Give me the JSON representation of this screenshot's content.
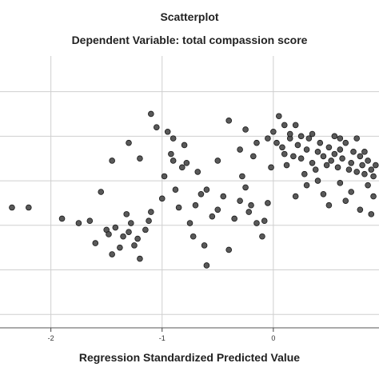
{
  "chart_data": {
    "type": "scatter",
    "title": "Scatterplot",
    "subtitle": "Dependent Variable: total compassion score",
    "xlabel": "Regression Standardized Predicted Value",
    "ylabel": "",
    "xlim": [
      -2.4,
      0.95
    ],
    "ylim": [
      -3.3,
      2.8
    ],
    "xticks": [
      -2,
      -1,
      0
    ],
    "xtick_labels": [
      "-2",
      "-1",
      "0"
    ],
    "yticks": [
      -3,
      -2,
      -1,
      0,
      1,
      2
    ],
    "grid": "horizontal and vertical gridlines",
    "marker_color": "#595959",
    "marker_edge": "#1a1a1a",
    "points": [
      [
        -2.35,
        -0.6
      ],
      [
        -2.2,
        -0.6
      ],
      [
        -1.9,
        -0.85
      ],
      [
        -1.75,
        -0.95
      ],
      [
        -1.65,
        -0.9
      ],
      [
        -1.6,
        -1.4
      ],
      [
        -1.55,
        -0.25
      ],
      [
        -1.5,
        -1.1
      ],
      [
        -1.48,
        -1.2
      ],
      [
        -1.45,
        -1.65
      ],
      [
        -1.42,
        -1.05
      ],
      [
        -1.38,
        -1.5
      ],
      [
        -1.35,
        -1.25
      ],
      [
        -1.32,
        -0.75
      ],
      [
        -1.3,
        -1.15
      ],
      [
        -1.28,
        -0.95
      ],
      [
        -1.25,
        -1.45
      ],
      [
        -1.22,
        -1.3
      ],
      [
        -1.15,
        -1.1
      ],
      [
        -1.12,
        -0.9
      ],
      [
        -1.1,
        -0.7
      ],
      [
        -1.2,
        -1.75
      ],
      [
        -1.05,
        1.2
      ],
      [
        -1.0,
        -0.4
      ],
      [
        -0.98,
        0.1
      ],
      [
        -0.95,
        1.1
      ],
      [
        -0.92,
        0.6
      ],
      [
        -0.9,
        0.45
      ],
      [
        -0.88,
        -0.2
      ],
      [
        -0.85,
        -0.6
      ],
      [
        -0.82,
        0.3
      ],
      [
        -0.8,
        0.8
      ],
      [
        -0.78,
        0.4
      ],
      [
        -0.75,
        -0.95
      ],
      [
        -0.72,
        -1.25
      ],
      [
        -0.7,
        -0.55
      ],
      [
        -0.68,
        0.2
      ],
      [
        -0.65,
        -0.3
      ],
      [
        -0.62,
        -1.45
      ],
      [
        -0.6,
        -1.9
      ],
      [
        -0.55,
        -0.8
      ],
      [
        -0.5,
        -0.65
      ],
      [
        -0.45,
        -0.35
      ],
      [
        -0.4,
        -1.55
      ],
      [
        -0.35,
        -0.85
      ],
      [
        -0.3,
        -0.45
      ],
      [
        -0.28,
        0.1
      ],
      [
        -0.25,
        -0.15
      ],
      [
        -0.22,
        -0.7
      ],
      [
        -0.2,
        -0.55
      ],
      [
        -0.18,
        0.55
      ],
      [
        -0.15,
        -0.95
      ],
      [
        -0.1,
        -1.25
      ],
      [
        -0.08,
        -0.9
      ],
      [
        -0.05,
        -0.5
      ],
      [
        -0.02,
        0.3
      ],
      [
        0.0,
        1.1
      ],
      [
        0.03,
        0.85
      ],
      [
        0.05,
        1.45
      ],
      [
        0.08,
        0.75
      ],
      [
        0.1,
        0.6
      ],
      [
        0.12,
        0.35
      ],
      [
        0.15,
        0.95
      ],
      [
        0.18,
        0.55
      ],
      [
        0.2,
        1.25
      ],
      [
        0.22,
        0.8
      ],
      [
        0.25,
        0.5
      ],
      [
        0.28,
        0.15
      ],
      [
        0.3,
        0.7
      ],
      [
        0.32,
        0.95
      ],
      [
        0.35,
        0.4
      ],
      [
        0.38,
        0.25
      ],
      [
        0.4,
        0.65
      ],
      [
        0.42,
        0.85
      ],
      [
        0.45,
        0.55
      ],
      [
        0.48,
        0.35
      ],
      [
        0.5,
        0.75
      ],
      [
        0.52,
        0.45
      ],
      [
        0.55,
        0.6
      ],
      [
        0.58,
        0.3
      ],
      [
        0.6,
        0.7
      ],
      [
        0.62,
        0.5
      ],
      [
        0.65,
        0.85
      ],
      [
        0.68,
        0.25
      ],
      [
        0.7,
        0.4
      ],
      [
        0.72,
        0.65
      ],
      [
        0.75,
        0.2
      ],
      [
        0.78,
        0.55
      ],
      [
        0.8,
        0.35
      ],
      [
        0.82,
        0.15
      ],
      [
        0.85,
        0.45
      ],
      [
        0.88,
        0.25
      ],
      [
        0.9,
        0.1
      ],
      [
        0.92,
        0.35
      ],
      [
        -1.45,
        0.45
      ],
      [
        -1.3,
        0.85
      ],
      [
        -1.2,
        0.5
      ],
      [
        -1.1,
        1.5
      ],
      [
        -0.9,
        0.95
      ],
      [
        -0.4,
        1.35
      ],
      [
        -0.25,
        1.15
      ],
      [
        -0.05,
        0.95
      ],
      [
        0.1,
        1.25
      ],
      [
        0.35,
        1.05
      ],
      [
        0.55,
        1.0
      ],
      [
        0.75,
        0.95
      ],
      [
        0.3,
        -0.1
      ],
      [
        0.45,
        -0.3
      ],
      [
        0.6,
        -0.05
      ],
      [
        0.7,
        -0.25
      ],
      [
        0.85,
        -0.1
      ],
      [
        0.9,
        -0.35
      ],
      [
        0.5,
        -0.55
      ],
      [
        0.65,
        -0.45
      ],
      [
        0.78,
        -0.65
      ],
      [
        0.88,
        -0.75
      ],
      [
        0.4,
        0.0
      ],
      [
        0.2,
        -0.35
      ],
      [
        -0.6,
        -0.2
      ],
      [
        -0.5,
        0.45
      ],
      [
        -0.3,
        0.7
      ],
      [
        -0.15,
        0.85
      ],
      [
        0.25,
        1.0
      ],
      [
        0.15,
        1.05
      ],
      [
        0.6,
        0.95
      ],
      [
        0.82,
        0.65
      ]
    ]
  }
}
